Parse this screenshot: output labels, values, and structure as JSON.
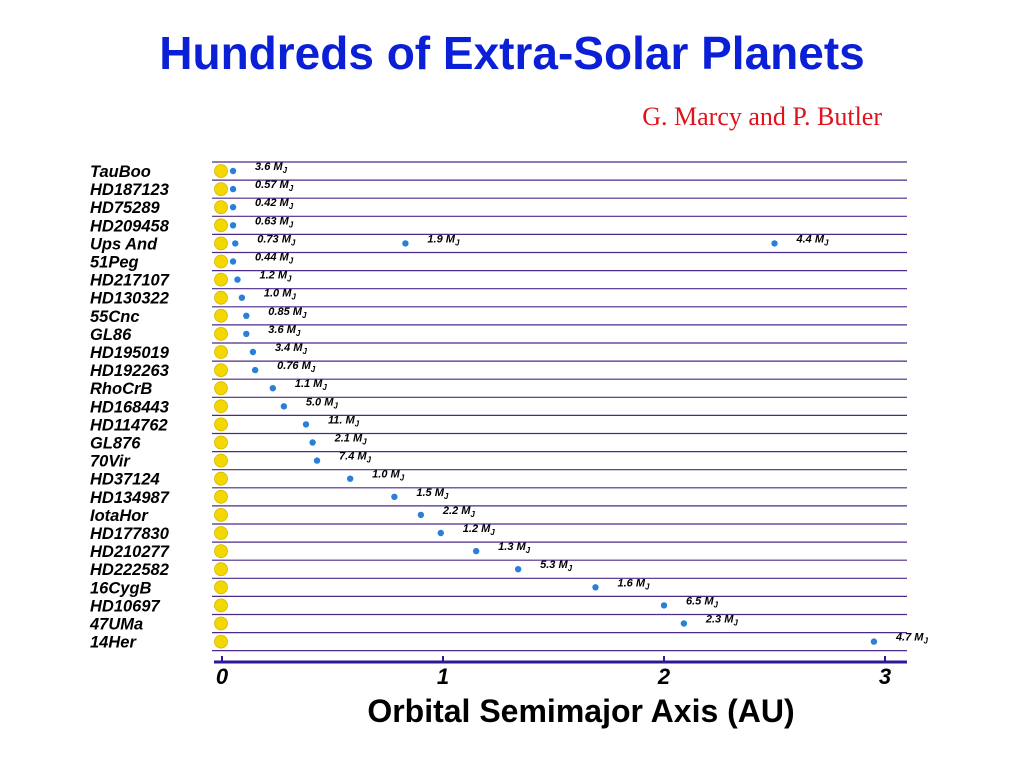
{
  "slide": {
    "title": "Hundreds of Extra-Solar Planets",
    "subtitle": "G. Marcy and P. Butler"
  },
  "colors": {
    "title": "#0a1fd6",
    "subtitle": "#e0121b",
    "row_line": "#4b2a8a",
    "axis": "#2a1a9a",
    "star": "#f2d800",
    "planet": "#2c7fd6"
  },
  "chart_data": {
    "type": "scatter",
    "title": "",
    "xlabel": "Orbital Semimajor Axis  (AU)",
    "ylabel": "",
    "xlim": [
      0,
      3.1
    ],
    "xticks": [
      "0",
      "1",
      "2",
      "3"
    ],
    "grid": "horizontal row lines",
    "stars": [
      {
        "name": "TauBoo",
        "planets": [
          {
            "a": 0.05,
            "mass": "3.6 M"
          }
        ]
      },
      {
        "name": "HD187123",
        "planets": [
          {
            "a": 0.05,
            "mass": "0.57 M"
          }
        ]
      },
      {
        "name": "HD75289",
        "planets": [
          {
            "a": 0.05,
            "mass": "0.42 M"
          }
        ]
      },
      {
        "name": "HD209458",
        "planets": [
          {
            "a": 0.05,
            "mass": "0.63 M"
          }
        ]
      },
      {
        "name": "Ups And",
        "planets": [
          {
            "a": 0.06,
            "mass": "0.73 M"
          },
          {
            "a": 0.83,
            "mass": "1.9 M"
          },
          {
            "a": 2.5,
            "mass": "4.4 M"
          }
        ]
      },
      {
        "name": "51Peg",
        "planets": [
          {
            "a": 0.05,
            "mass": "0.44 M"
          }
        ]
      },
      {
        "name": "HD217107",
        "planets": [
          {
            "a": 0.07,
            "mass": "1.2 M"
          }
        ]
      },
      {
        "name": "HD130322",
        "planets": [
          {
            "a": 0.09,
            "mass": "1.0 M"
          }
        ]
      },
      {
        "name": "55Cnc",
        "planets": [
          {
            "a": 0.11,
            "mass": "0.85 M"
          }
        ]
      },
      {
        "name": "GL86",
        "planets": [
          {
            "a": 0.11,
            "mass": "3.6 M"
          }
        ]
      },
      {
        "name": "HD195019",
        "planets": [
          {
            "a": 0.14,
            "mass": "3.4 M"
          }
        ]
      },
      {
        "name": "HD192263",
        "planets": [
          {
            "a": 0.15,
            "mass": "0.76 M"
          }
        ]
      },
      {
        "name": "RhoCrB",
        "planets": [
          {
            "a": 0.23,
            "mass": "1.1 M"
          }
        ]
      },
      {
        "name": "HD168443",
        "planets": [
          {
            "a": 0.28,
            "mass": "5.0 M"
          }
        ]
      },
      {
        "name": "HD114762",
        "planets": [
          {
            "a": 0.38,
            "mass": "11. M"
          }
        ]
      },
      {
        "name": "GL876",
        "planets": [
          {
            "a": 0.41,
            "mass": "2.1 M"
          }
        ]
      },
      {
        "name": "70Vir",
        "planets": [
          {
            "a": 0.43,
            "mass": "7.4 M"
          }
        ]
      },
      {
        "name": "HD37124",
        "planets": [
          {
            "a": 0.58,
            "mass": "1.0 M"
          }
        ]
      },
      {
        "name": "HD134987",
        "planets": [
          {
            "a": 0.78,
            "mass": "1.5 M"
          }
        ]
      },
      {
        "name": "IotaHor",
        "planets": [
          {
            "a": 0.9,
            "mass": "2.2 M"
          }
        ]
      },
      {
        "name": "HD177830",
        "planets": [
          {
            "a": 0.99,
            "mass": "1.2 M"
          }
        ]
      },
      {
        "name": "HD210277",
        "planets": [
          {
            "a": 1.15,
            "mass": "1.3 M"
          }
        ]
      },
      {
        "name": "HD222582",
        "planets": [
          {
            "a": 1.34,
            "mass": "5.3 M"
          }
        ]
      },
      {
        "name": "16CygB",
        "planets": [
          {
            "a": 1.69,
            "mass": "1.6 M"
          }
        ]
      },
      {
        "name": "HD10697",
        "planets": [
          {
            "a": 2.0,
            "mass": "6.5 M"
          }
        ]
      },
      {
        "name": "47UMa",
        "planets": [
          {
            "a": 2.09,
            "mass": "2.3 M"
          }
        ]
      },
      {
        "name": "14Her",
        "planets": [
          {
            "a": 2.95,
            "mass": "4.7 M"
          }
        ]
      }
    ]
  }
}
